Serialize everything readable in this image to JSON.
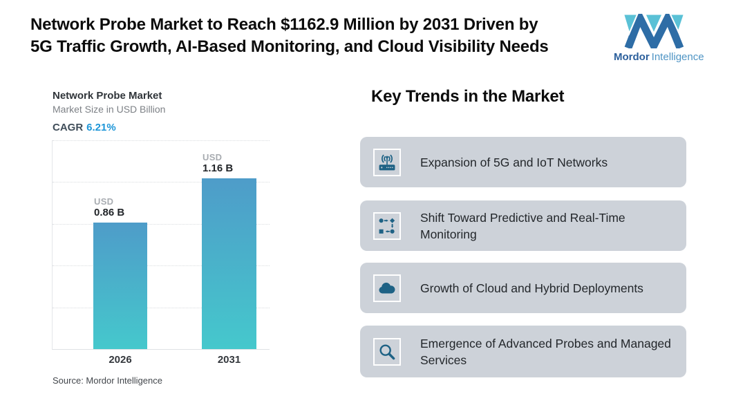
{
  "header": {
    "title_line1": "Network Probe Market to Reach $1162.9 Million by 2031 Driven by",
    "title_line2": "5G Traffic Growth, AI-Based Monitoring, and Cloud Visibility Needs",
    "logo": {
      "brand_bold": "Mordor",
      "brand_light": "Intelligence"
    }
  },
  "chart_data": {
    "type": "bar",
    "title": "Network Probe Market",
    "subtitle": "Market Size in USD Billion",
    "cagr_label": "CAGR",
    "cagr_value": "6.21%",
    "categories": [
      "2026",
      "2031"
    ],
    "values": [
      0.86,
      1.16
    ],
    "unit_label": "USD",
    "value_labels": [
      "0.86 B",
      "1.16 B"
    ],
    "ylim": [
      0,
      1.42
    ],
    "grid": true,
    "legend": false,
    "source": "Source: Mordor Intelligence",
    "bar_gradient_top": "#4e9cc9",
    "bar_gradient_bottom": "#45c8cc"
  },
  "trends": {
    "heading": "Key Trends in the Market",
    "items": [
      {
        "icon": "router-5g-icon",
        "label": "Expansion of 5G and IoT Networks"
      },
      {
        "icon": "flowchart-icon",
        "label": "Shift Toward Predictive and Real-Time Monitoring"
      },
      {
        "icon": "cloud-icon",
        "label": "Growth of Cloud and Hybrid Deployments"
      },
      {
        "icon": "magnifier-icon",
        "label": "Emergence of Advanced Probes and Managed Services"
      }
    ]
  },
  "colors": {
    "card_background": "#cdd2d9",
    "icon_teal": "#1e6285",
    "cagr_blue": "#1d96d8",
    "logo_blue": "#2e6da6",
    "logo_teal": "#5ac1d6"
  }
}
